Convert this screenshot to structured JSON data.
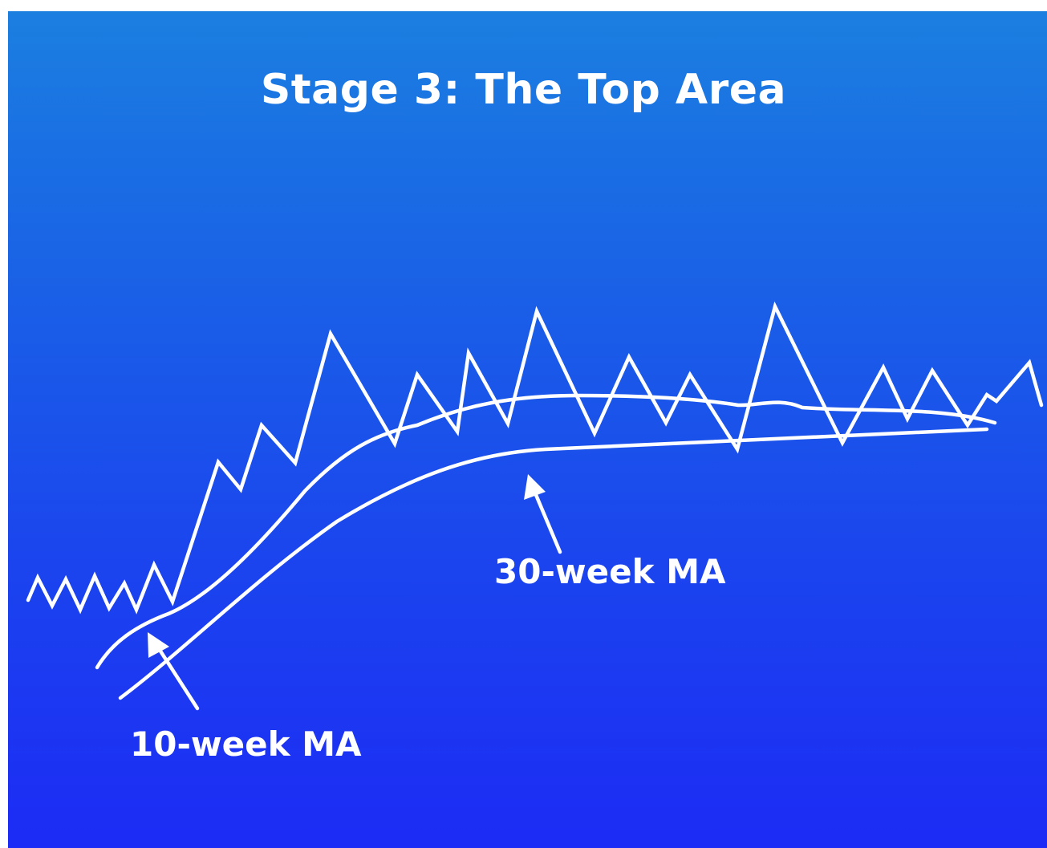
{
  "title": "Stage 3: The Top Area",
  "annotations": {
    "ma30_label": "30-week MA",
    "ma10_label": "10-week MA"
  },
  "colors": {
    "background_top": "#1b7fe0",
    "background_bottom": "#1c2bf5",
    "ink": "#ffffff"
  }
}
